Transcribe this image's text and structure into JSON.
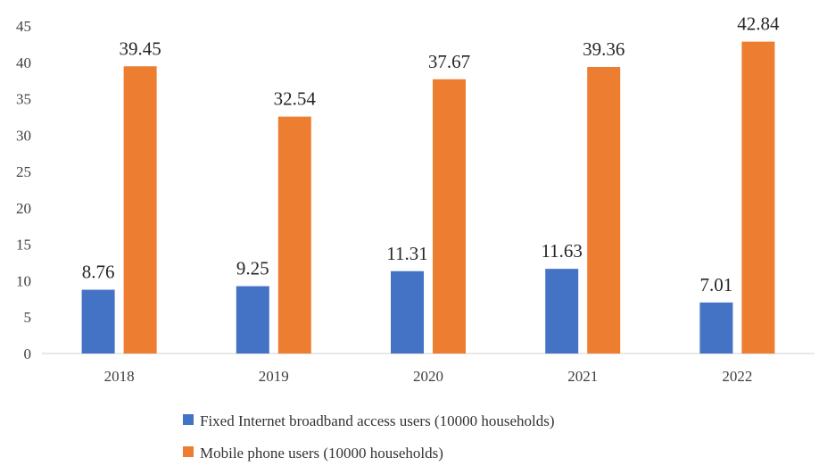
{
  "chart_data": {
    "type": "bar",
    "title": "",
    "xlabel": "",
    "ylabel": "",
    "categories": [
      "2018",
      "2019",
      "2020",
      "2021",
      "2022"
    ],
    "series": [
      {
        "name": "Fixed Internet broadband access users (10000 households)",
        "values": [
          8.76,
          9.25,
          11.31,
          11.63,
          7.01
        ],
        "labels": [
          "8.76",
          "9.25",
          "11.31",
          "11.63",
          "7.01"
        ],
        "color": "#4472C4"
      },
      {
        "name": "Mobile phone users (10000 households)",
        "values": [
          39.45,
          32.54,
          37.67,
          39.36,
          42.84
        ],
        "labels": [
          "39.45",
          "32.54",
          "37.67",
          "39.36",
          "42.84"
        ],
        "color": "#ED7D31"
      }
    ],
    "ylim": [
      0,
      45
    ],
    "yticks": [
      "0",
      "5",
      "10",
      "15",
      "20",
      "25",
      "30",
      "35",
      "40",
      "45"
    ],
    "grid": false,
    "legend_position": "bottom"
  }
}
